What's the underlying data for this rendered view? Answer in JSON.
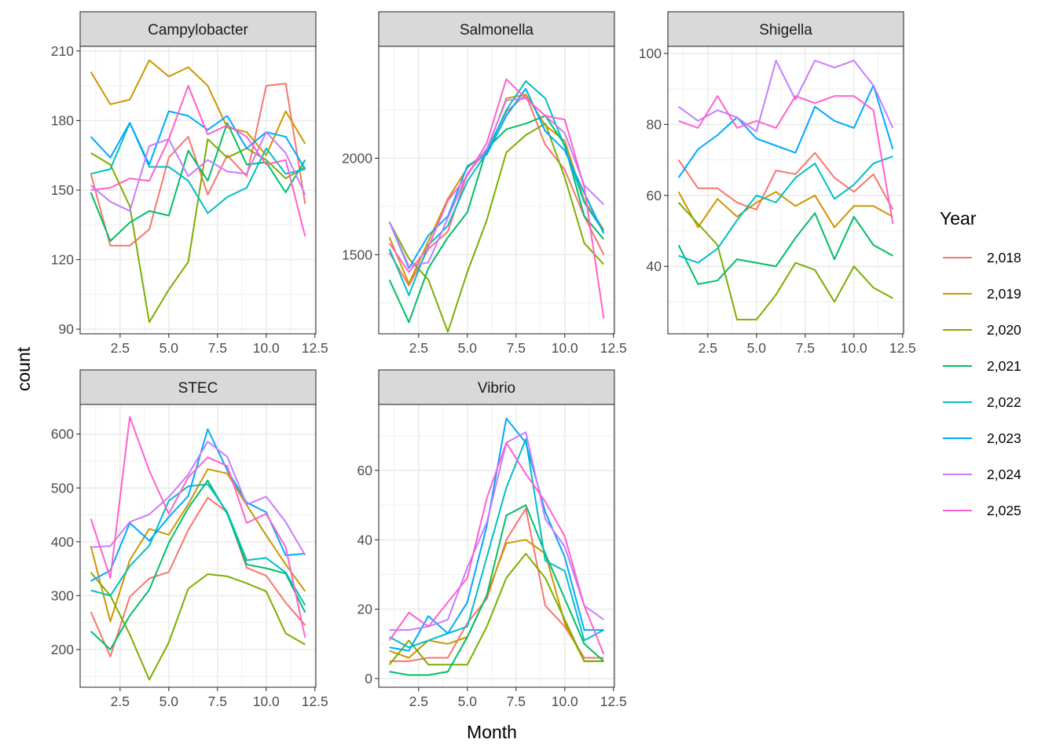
{
  "chart_data": {
    "type": "line",
    "xlabel": "Month",
    "ylabel": "count",
    "legend": {
      "title": "Year",
      "placement": "right",
      "entries": [
        {
          "label": "2,018",
          "color": "#F8766D"
        },
        {
          "label": "2,019",
          "color": "#CD9600"
        },
        {
          "label": "2,020",
          "color": "#7CAE00"
        },
        {
          "label": "2,021",
          "color": "#00BE67"
        },
        {
          "label": "2,022",
          "color": "#00BFC4"
        },
        {
          "label": "2,023",
          "color": "#00A9FF"
        },
        {
          "label": "2,024",
          "color": "#C77CFF"
        },
        {
          "label": "2,025",
          "color": "#FF61CC"
        }
      ]
    },
    "x": [
      1,
      2,
      3,
      4,
      5,
      6,
      7,
      8,
      9,
      10,
      11,
      12
    ],
    "xlim": [
      0.45,
      12.55
    ],
    "x_ticks": [
      2.5,
      5.0,
      7.5,
      10.0,
      12.5
    ],
    "x_tick_labels": [
      "2.5",
      "5.0",
      "7.5",
      "10.0",
      "12.5"
    ],
    "grid": true,
    "panels": [
      {
        "title": "Campylobacter",
        "ylim": [
          88,
          212
        ],
        "y_ticks": [
          90,
          120,
          150,
          180,
          210
        ],
        "y_tick_labels": [
          "90",
          "120",
          "150",
          "180",
          "210"
        ],
        "series": [
          {
            "name": "2,018",
            "values": [
              157,
              126,
              126,
              133,
              164,
              173,
              148,
              165,
              156,
              195,
              196,
              144
            ]
          },
          {
            "name": "2,019",
            "values": [
              201,
              187,
              189,
              206,
              199,
              203,
              195,
              177,
              175,
              165,
              184,
              170
            ]
          },
          {
            "name": "2,020",
            "values": [
              166,
              161,
              143,
              93,
              107,
              119,
              172,
              164,
              168,
              163,
              155,
              160
            ]
          },
          {
            "name": "2,021",
            "values": [
              149,
              128,
              136,
              141,
              139,
              167,
              154,
              179,
              161,
              162,
              149,
              163
            ]
          },
          {
            "name": "2,022",
            "values": [
              157,
              159,
              179,
              160,
              160,
              154,
              140,
              147,
              151,
              168,
              157,
              159
            ]
          },
          {
            "name": "2,023",
            "values": [
              173,
              164,
              179,
              161,
              184,
              182,
              176,
              182,
              168,
              175,
              173,
              159
            ]
          },
          {
            "name": "2,024",
            "values": [
              152,
              145,
              141,
              169,
              172,
              156,
              163,
              158,
              157,
              175,
              166,
              148
            ]
          },
          {
            "name": "2,025",
            "values": [
              150,
              151,
              155,
              154,
              172,
              195,
              174,
              178,
              173,
              161,
              163,
              130
            ]
          }
        ]
      },
      {
        "title": "Salmonella",
        "ylim": [
          1090,
          2580
        ],
        "y_ticks": [
          1500,
          2000
        ],
        "y_tick_labels": [
          "1500",
          "2000"
        ],
        "series": [
          {
            "name": "2,018",
            "values": [
              1510,
              1340,
              1530,
              1620,
              1920,
              2040,
              2240,
              2330,
              2070,
              1940,
              1700,
              1500
            ]
          },
          {
            "name": "2,019",
            "values": [
              1590,
              1350,
              1570,
              1790,
              1950,
              2040,
              2310,
              2330,
              2170,
              2090,
              1780,
              1630
            ]
          },
          {
            "name": "2,020",
            "values": [
              1670,
              1480,
              1370,
              1100,
              1410,
              1680,
              2030,
              2120,
              2180,
              1900,
              1560,
              1450
            ]
          },
          {
            "name": "2,021",
            "values": [
              1370,
              1150,
              1430,
              1590,
              1720,
              2050,
              2150,
              2180,
              2220,
              2070,
              1700,
              1580
            ]
          },
          {
            "name": "2,022",
            "values": [
              1530,
              1290,
              1550,
              1650,
              1880,
              2030,
              2250,
              2400,
              2310,
              2060,
              1770,
              1620
            ]
          },
          {
            "name": "2,023",
            "values": [
              1670,
              1430,
              1600,
              1700,
              1960,
              2020,
              2220,
              2360,
              2140,
              2040,
              1820,
              1610
            ]
          },
          {
            "name": "2,024",
            "values": [
              1670,
              1440,
              1460,
              1690,
              1920,
              2050,
              2300,
              2310,
              2220,
              2130,
              1860,
              1760
            ]
          },
          {
            "name": "2,025",
            "values": [
              1560,
              1410,
              1540,
              1780,
              1910,
              2080,
              2410,
              2310,
              2220,
              2200,
              1850,
              1170
            ]
          }
        ]
      },
      {
        "title": "Shigella",
        "ylim": [
          21,
          102
        ],
        "y_ticks": [
          40,
          60,
          80,
          100
        ],
        "y_tick_labels": [
          "40",
          "60",
          "80",
          "100"
        ],
        "series": [
          {
            "name": "2,018",
            "values": [
              70,
              62,
              62,
              58,
              56,
              67,
              66,
              72,
              65,
              61,
              66,
              56
            ]
          },
          {
            "name": "2,019",
            "values": [
              61,
              51,
              59,
              54,
              58,
              61,
              57,
              60,
              51,
              57,
              57,
              54
            ]
          },
          {
            "name": "2,020",
            "values": [
              58,
              52,
              46,
              25,
              25,
              32,
              41,
              39,
              30,
              40,
              34,
              31
            ]
          },
          {
            "name": "2,021",
            "values": [
              46,
              35,
              36,
              42,
              41,
              40,
              48,
              55,
              42,
              54,
              46,
              43
            ]
          },
          {
            "name": "2,022",
            "values": [
              43,
              41,
              45,
              53,
              60,
              58,
              65,
              69,
              59,
              63,
              69,
              71
            ]
          },
          {
            "name": "2,023",
            "values": [
              65,
              73,
              77,
              82,
              76,
              74,
              72,
              85,
              81,
              79,
              91,
              73
            ]
          },
          {
            "name": "2,024",
            "values": [
              85,
              81,
              84,
              82,
              78,
              98,
              87,
              98,
              96,
              98,
              91,
              79
            ]
          },
          {
            "name": "2,025",
            "values": [
              81,
              79,
              88,
              79,
              81,
              79,
              88,
              86,
              88,
              88,
              84,
              52
            ]
          }
        ]
      },
      {
        "title": "STEC",
        "ylim": [
          130,
          655
        ],
        "y_ticks": [
          200,
          300,
          400,
          500,
          600
        ],
        "y_tick_labels": [
          "200",
          "300",
          "400",
          "500",
          "600"
        ],
        "series": [
          {
            "name": "2,018",
            "values": [
              270,
              187,
              298,
              332,
              344,
              422,
              482,
              455,
              352,
              337,
              287,
              245
            ]
          },
          {
            "name": "2,019",
            "values": [
              392,
              252,
              366,
              424,
              413,
              470,
              535,
              527,
              468,
              412,
              358,
              308
            ]
          },
          {
            "name": "2,020",
            "values": [
              343,
              300,
              228,
              144,
              213,
              313,
              340,
              336,
              323,
              308,
              230,
              209
            ]
          },
          {
            "name": "2,021",
            "values": [
              234,
              200,
              263,
              311,
              398,
              463,
              514,
              452,
              358,
              351,
              341,
              269
            ]
          },
          {
            "name": "2,022",
            "values": [
              310,
              300,
              355,
              393,
              476,
              503,
              507,
              455,
              366,
              370,
              343,
              282
            ]
          },
          {
            "name": "2,023",
            "values": [
              327,
              347,
              435,
              402,
              446,
              485,
              609,
              533,
              473,
              455,
              375,
              378
            ]
          },
          {
            "name": "2,024",
            "values": [
              390,
              392,
              437,
              451,
              483,
              525,
              586,
              558,
              469,
              484,
              437,
              375
            ]
          },
          {
            "name": "2,025",
            "values": [
              443,
              333,
              632,
              532,
              452,
              520,
              557,
              541,
              435,
              452,
              390,
              222
            ]
          }
        ]
      },
      {
        "title": "Vibrio",
        "ylim": [
          -2.5,
          79
        ],
        "y_ticks": [
          0,
          20,
          40,
          60
        ],
        "y_tick_labels": [
          "0",
          "20",
          "40",
          "60"
        ],
        "series": [
          {
            "name": "2,018",
            "values": [
              5,
              5,
              6,
              6,
              16,
              23,
              40,
              49,
              21,
              15,
              6,
              6
            ]
          },
          {
            "name": "2,019",
            "values": [
              8,
              6,
              11,
              10,
              12,
              24,
              39,
              40,
              36,
              16,
              5,
              5
            ]
          },
          {
            "name": "2,020",
            "values": [
              4,
              11,
              4,
              4,
              4,
              15,
              29,
              36,
              29,
              17,
              5,
              5
            ]
          },
          {
            "name": "2,021",
            "values": [
              2,
              1,
              1,
              2,
              12,
              24,
              47,
              50,
              36,
              23,
              10,
              5
            ]
          },
          {
            "name": "2,022",
            "values": [
              12,
              9,
              11,
              13,
              15,
              35,
              55,
              69,
              34,
              31,
              11,
              14
            ]
          },
          {
            "name": "2,023",
            "values": [
              9,
              8,
              18,
              13,
              22,
              44,
              75,
              68,
              48,
              35,
              14,
              14
            ]
          },
          {
            "name": "2,024",
            "values": [
              14,
              14,
              15,
              17,
              32,
              45,
              68,
              71,
              46,
              38,
              21,
              17
            ]
          },
          {
            "name": "2,025",
            "values": [
              11,
              19,
              15,
              22,
              29,
              52,
              68,
              59,
              51,
              41,
              21,
              7
            ]
          }
        ]
      }
    ]
  }
}
